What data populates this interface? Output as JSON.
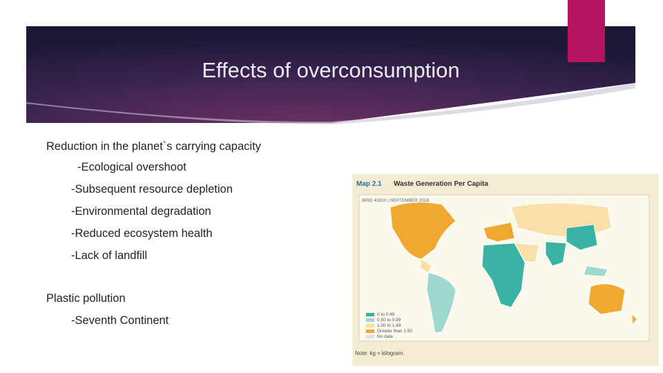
{
  "slide": {
    "title": "Effects of overconsumption",
    "bullets": [
      "Reduction in the planet`s carrying capacity",
      "-Ecological overshoot",
      "-Subsequent resource depletion",
      "-Environmental degradation",
      "-Reduced ecosystem health",
      "-Lack of landfill",
      "Plastic pollution",
      "-Seventh Continent"
    ]
  },
  "map": {
    "label": "Map 2.1",
    "title": "Waste Generation Per Capita",
    "code": "IBRD 43910 | SEPTEMBER 2018",
    "legend": [
      "0 to 0.49",
      "0.50 to 0.99",
      "1.00 to 1.49",
      "Greater than 1.50",
      "No data"
    ],
    "note": "Note: kg = kilogram."
  }
}
